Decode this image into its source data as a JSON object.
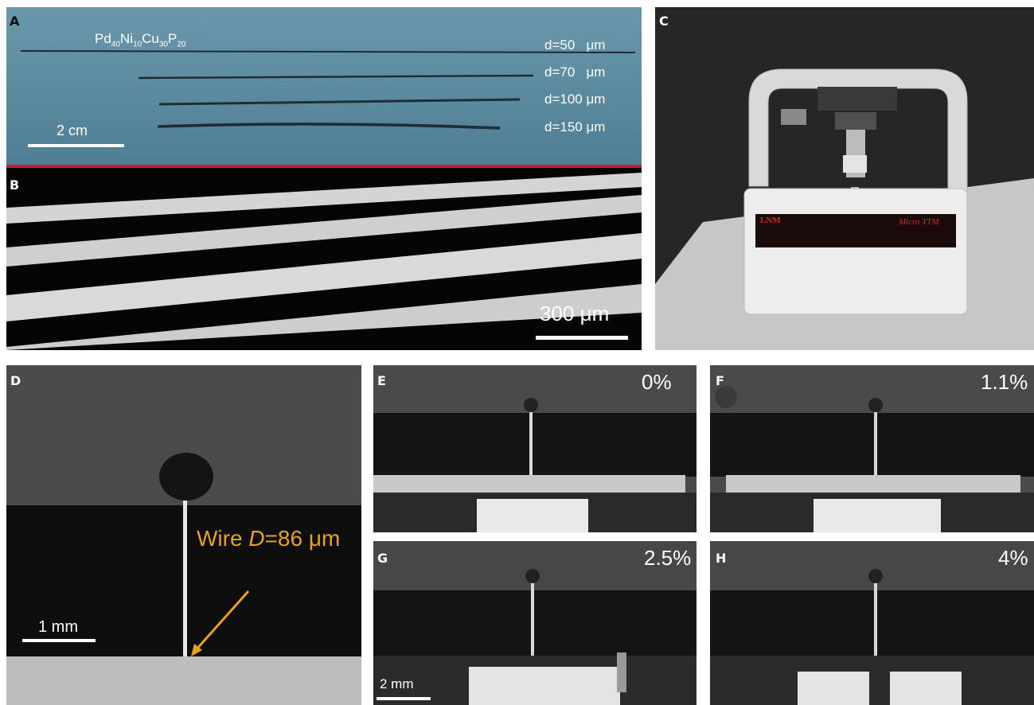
{
  "figure": {
    "panels": {
      "A": {
        "label": "A",
        "alloy": {
          "base1": "Pd",
          "sub1": "40",
          "base2": "Ni",
          "sub2": "10",
          "base3": "Cu",
          "sub3": "30",
          "base4": "P",
          "sub4": "20"
        },
        "diameters": [
          "d=50   μm",
          "d=70   μm",
          "d=100 μm",
          "d=150 μm"
        ],
        "scale_bar": "2 cm"
      },
      "B": {
        "label": "B",
        "scale_bar": "300 μm"
      },
      "C": {
        "label": "C",
        "brand_logo": "LNM",
        "device_name": "Micro TTM"
      },
      "D": {
        "label": "D",
        "annotation_prefix": "Wire ",
        "annotation_var": "D",
        "annotation_value": "=86 μm",
        "scale_bar": "1 mm"
      },
      "E": {
        "label": "E",
        "strain": "0%"
      },
      "F": {
        "label": "F",
        "strain": "1.1%"
      },
      "G": {
        "label": "G",
        "strain": "2.5%",
        "scale_bar": "2 mm"
      },
      "H": {
        "label": "H",
        "strain": "4%"
      }
    },
    "colors": {
      "panel_a_bg": "#5f8da3",
      "divider_red": "#c8202a",
      "annotation_orange": "#e8a21a",
      "device_panel_bg": "#262626"
    }
  }
}
